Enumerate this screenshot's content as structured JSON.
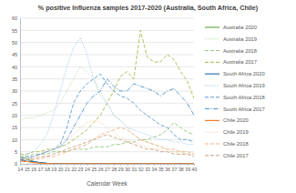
{
  "chart_data": {
    "type": "line",
    "title": "% positive Influenza samples 2017-2020 (Australia, South Africa, Chile)",
    "x_label": "Calendar Week",
    "x": [
      14,
      15,
      16,
      17,
      18,
      19,
      20,
      21,
      22,
      23,
      24,
      25,
      26,
      27,
      28,
      29,
      30,
      31,
      32,
      33,
      34,
      35,
      36,
      37,
      38,
      39,
      40
    ],
    "xlim": [
      14,
      40
    ],
    "xticks": [
      14,
      15,
      16,
      17,
      18,
      19,
      20,
      21,
      22,
      23,
      24,
      25,
      26,
      27,
      28,
      29,
      30,
      31,
      32,
      33,
      34,
      35,
      36,
      37,
      38,
      39,
      40
    ],
    "ylim": [
      0,
      60
    ],
    "yticks": [
      0,
      5,
      10,
      15,
      20,
      25,
      30,
      35,
      40,
      45,
      50,
      55,
      60
    ],
    "grid": true,
    "legend": "right",
    "series": [
      {
        "name": "Australia 2020",
        "color": "#6aa84f",
        "line_style": "solid",
        "values": [
          3,
          2,
          1,
          0.5,
          0.3,
          0.2,
          0.2,
          0.2,
          0.1,
          0.1,
          0.1,
          0.1,
          0.1,
          0.1,
          0.1,
          0.1,
          0.1,
          0.1,
          0.1,
          0.1,
          0.1,
          0.1,
          0.1,
          0.1,
          0.1,
          0.1,
          0.1
        ]
      },
      {
        "name": "Australia 2019",
        "color": "#b6d7a8",
        "line_style": "dotted",
        "values": [
          18,
          19,
          19,
          20,
          21,
          22,
          25,
          30,
          35,
          40,
          38,
          35,
          30,
          25,
          20,
          18,
          15,
          12,
          10,
          9,
          8,
          7,
          6,
          5,
          5,
          4,
          4
        ]
      },
      {
        "name": "Australia 2018",
        "color": "#93c47d",
        "line_style": "dashed",
        "values": [
          3,
          3,
          4,
          4,
          4,
          5,
          5,
          5,
          6,
          6,
          6,
          7,
          7,
          7,
          8,
          8,
          9,
          9,
          10,
          10,
          11,
          12,
          14,
          17,
          15,
          13,
          12
        ]
      },
      {
        "name": "Australia 2017",
        "color": "#a8b84a",
        "line_style": "dashed",
        "values": [
          4,
          4,
          5,
          5,
          6,
          6,
          7,
          8,
          10,
          12,
          14,
          17,
          20,
          25,
          30,
          36,
          38,
          35,
          55,
          44,
          42,
          42,
          45,
          43,
          38,
          34,
          27
        ]
      },
      {
        "name": "South Africa 2020",
        "color": "#2e75b6",
        "line_style": "solid",
        "values": [
          2,
          1,
          1,
          0.5,
          0.3,
          0.2,
          0.1,
          0.1,
          0.1,
          0.1,
          0.1,
          0.1,
          0.1,
          0.1,
          0.1,
          0.1,
          0.1,
          0.1,
          0.1,
          0.1,
          0.1,
          0.1,
          0.1,
          0.1,
          0.1,
          0.1,
          0.1
        ]
      },
      {
        "name": "South Africa 2019",
        "color": "#9dc3e6",
        "line_style": "dotted",
        "values": [
          3,
          4,
          5,
          8,
          12,
          20,
          30,
          40,
          48,
          52,
          45,
          35,
          28,
          25,
          20,
          18,
          15,
          14,
          13,
          12,
          11,
          10,
          10,
          9,
          9,
          8,
          8
        ]
      },
      {
        "name": "South Africa 2018",
        "color": "#5b9bd5",
        "line_style": "dashed",
        "values": [
          2,
          3,
          3,
          4,
          5,
          6,
          8,
          15,
          25,
          30,
          33,
          35,
          37,
          33,
          30,
          28,
          27,
          25,
          22,
          20,
          18,
          16,
          15,
          12,
          10,
          10,
          9
        ]
      },
      {
        "name": "South Africa 2017",
        "color": "#4a90c8",
        "line_style": "dashdot",
        "values": [
          1,
          2,
          3,
          4,
          5,
          6,
          7,
          10,
          15,
          20,
          25,
          28,
          30,
          35,
          32,
          30,
          30,
          33,
          32,
          31,
          30,
          28,
          30,
          31,
          28,
          25,
          20
        ]
      },
      {
        "name": "Chile 2020",
        "color": "#ed7d31",
        "line_style": "solid",
        "values": [
          1,
          1,
          0.5,
          0.3,
          0.2,
          0.1,
          0.1,
          0.1,
          0.1,
          0.1,
          0.1,
          0.1,
          0.1,
          0.1,
          0.1,
          0.1,
          0.1,
          0.1,
          0.1,
          0.1,
          0.1,
          0.1,
          0.1,
          0.1,
          0.1,
          0.1,
          0.1
        ]
      },
      {
        "name": "Chile 2019",
        "color": "#f8cbad",
        "line_style": "dotted",
        "values": [
          2,
          2,
          3,
          4,
          5,
          6,
          8,
          10,
          12,
          15,
          17,
          18,
          17,
          15,
          13,
          11,
          10,
          9,
          8,
          7,
          6,
          6,
          5,
          5,
          4,
          4,
          4
        ]
      },
      {
        "name": "Chile 2018",
        "color": "#f4b183",
        "line_style": "dashed",
        "values": [
          1,
          1,
          2,
          2,
          3,
          3,
          4,
          5,
          6,
          7,
          8,
          10,
          12,
          13,
          14,
          15,
          14,
          12,
          10,
          9,
          8,
          7,
          6,
          6,
          5,
          5,
          4
        ]
      },
      {
        "name": "Chile 2017",
        "color": "#c9a27e",
        "line_style": "dashed",
        "values": [
          2,
          2,
          2,
          3,
          3,
          4,
          5,
          6,
          7,
          8,
          9,
          10,
          11,
          12,
          11,
          10,
          9,
          8,
          7,
          6,
          6,
          5,
          5,
          4,
          4,
          4,
          3
        ]
      }
    ]
  }
}
